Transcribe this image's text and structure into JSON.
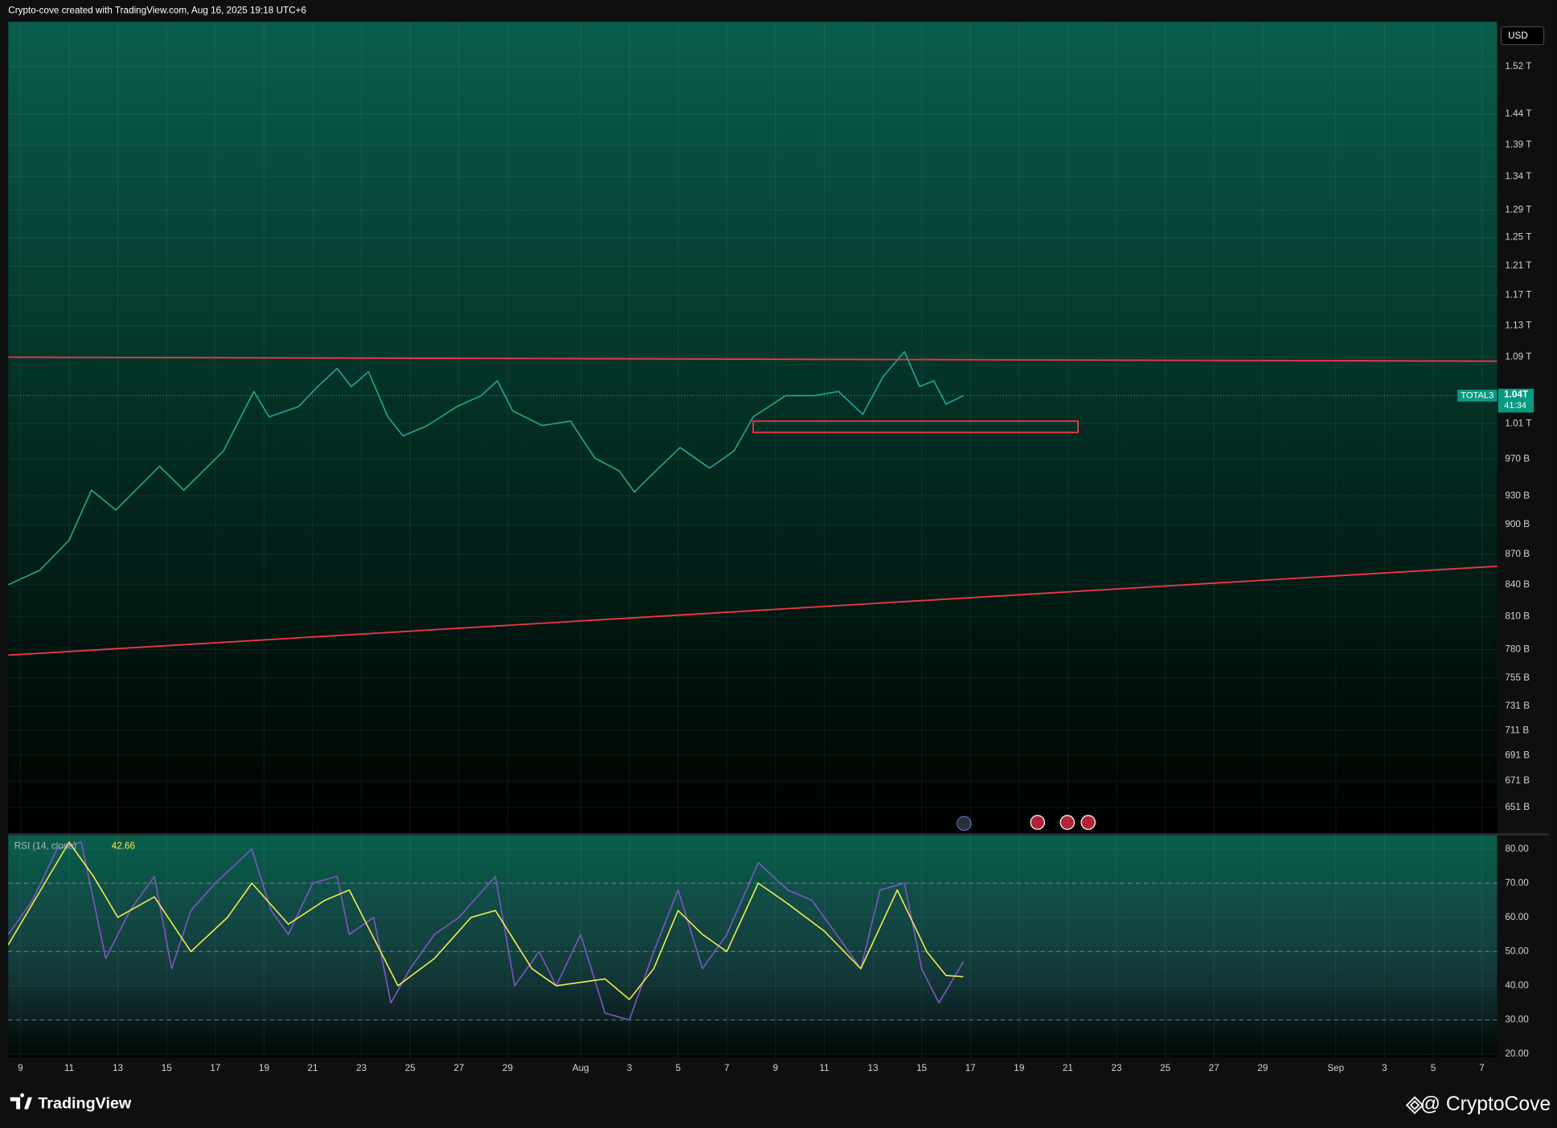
{
  "header": {
    "attribution": "Crypto-cove created with TradingView.com, Aug 16, 2025 19:18 UTC+6"
  },
  "footer": {
    "logo": "TradingView",
    "watermark": "@ CryptoCove"
  },
  "chart_data": [
    {
      "type": "line",
      "symbol": "TOTAL3",
      "currency": "USD",
      "countdown": "41:34",
      "log_scale": true,
      "grid": true,
      "xlim": [
        "2025-07-08T12:00:00Z",
        "2025-09-07T15:00:00Z"
      ],
      "ylim": [
        632,
        1600
      ],
      "yticks": [
        {
          "value": 1520,
          "label": "1.52 T"
        },
        {
          "value": 1440,
          "label": "1.44 T"
        },
        {
          "value": 1390,
          "label": "1.39 T"
        },
        {
          "value": 1340,
          "label": "1.34 T"
        },
        {
          "value": 1290,
          "label": "1.29 T"
        },
        {
          "value": 1250,
          "label": "1.25 T"
        },
        {
          "value": 1210,
          "label": "1.21 T"
        },
        {
          "value": 1170,
          "label": "1.17 T"
        },
        {
          "value": 1130,
          "label": "1.13 T"
        },
        {
          "value": 1090,
          "label": "1.09 T"
        },
        {
          "value": 1010,
          "label": "1.01 T"
        },
        {
          "value": 970,
          "label": "970 B"
        },
        {
          "value": 930,
          "label": "930 B"
        },
        {
          "value": 900,
          "label": "900 B"
        },
        {
          "value": 870,
          "label": "870 B"
        },
        {
          "value": 840,
          "label": "840 B"
        },
        {
          "value": 810,
          "label": "810 B"
        },
        {
          "value": 780,
          "label": "780 B"
        },
        {
          "value": 755,
          "label": "755 B"
        },
        {
          "value": 731,
          "label": "731 B"
        },
        {
          "value": 711,
          "label": "711 B"
        },
        {
          "value": 691,
          "label": "691 B"
        },
        {
          "value": 671,
          "label": "671 B"
        },
        {
          "value": 651,
          "label": "651 B"
        }
      ],
      "last_price": {
        "value": 1043,
        "label": "1.04T"
      },
      "series": [
        {
          "color": "#26a69a",
          "x": [
            "2025-07-08T12:00:00Z",
            "2025-07-09T19:00:00Z",
            "2025-07-11T00:00:00Z",
            "2025-07-11T22:00:00Z",
            "2025-07-12T22:00:00Z",
            "2025-07-14T17:00:00Z",
            "2025-07-15T17:00:00Z",
            "2025-07-17T08:00:00Z",
            "2025-07-18T14:00:00Z",
            "2025-07-19T05:00:00Z",
            "2025-07-20T10:00:00Z",
            "2025-07-21T05:00:00Z",
            "2025-07-22T00:00:00Z",
            "2025-07-22T14:00:00Z",
            "2025-07-23T07:00:00Z",
            "2025-07-24T02:00:00Z",
            "2025-07-24T17:00:00Z",
            "2025-07-25T17:00:00Z",
            "2025-07-26T22:00:00Z",
            "2025-07-27T22:00:00Z",
            "2025-07-28T14:00:00Z",
            "2025-07-29T05:00:00Z",
            "2025-07-30T10:00:00Z",
            "2025-07-31T14:00:00Z",
            "2025-08-01T14:00:00Z",
            "2025-08-02T14:00:00Z",
            "2025-08-03T05:00:00Z",
            "2025-08-04T02:00:00Z",
            "2025-08-05T02:00:00Z",
            "2025-08-06T07:00:00Z",
            "2025-08-07T07:00:00Z",
            "2025-08-08T02:00:00Z",
            "2025-08-09T10:00:00Z",
            "2025-08-10T14:00:00Z",
            "2025-08-11T14:00:00Z",
            "2025-08-12T14:00:00Z",
            "2025-08-13T10:00:00Z",
            "2025-08-14T07:00:00Z",
            "2025-08-14T22:00:00Z",
            "2025-08-15T12:00:00Z",
            "2025-08-16T00:00:00Z",
            "2025-08-16T17:00:00Z"
          ],
          "values": [
            840,
            854,
            884,
            936,
            915,
            962,
            936,
            979,
            1048,
            1018,
            1030,
            1054,
            1076,
            1054,
            1072,
            1018,
            996,
            1008,
            1030,
            1043,
            1061,
            1025,
            1008,
            1013,
            971,
            957,
            934,
            957,
            983,
            960,
            979,
            1018,
            1043,
            1043,
            1048,
            1021,
            1066,
            1097,
            1054,
            1061,
            1033,
            1043
          ]
        }
      ],
      "lines": [
        {
          "color": "#f23645",
          "start": [
            "2025-07-08T12:00:00Z",
            1090
          ],
          "end": [
            "2025-09-07T15:00:00Z",
            1085
          ]
        },
        {
          "color": "#f23645",
          "start": [
            "2025-07-08T12:00:00Z",
            775
          ],
          "end": [
            "2025-09-07T15:00:00Z",
            858
          ]
        }
      ],
      "zones": [
        {
          "color": "#f23645",
          "x": [
            "2025-08-08T02:00:00Z",
            "2025-08-21T10:00:00Z"
          ],
          "y": [
            1000,
            1013
          ]
        }
      ]
    },
    {
      "type": "line",
      "title": "RSI (14, close)",
      "grid": true,
      "xlim": [
        "2025-07-08T12:00:00Z",
        "2025-09-07T15:00:00Z"
      ],
      "ylim": [
        19,
        84
      ],
      "yticks": [
        {
          "value": 80,
          "label": "80.00"
        },
        {
          "value": 70,
          "label": "70.00"
        },
        {
          "value": 60,
          "label": "60.00"
        },
        {
          "value": 50,
          "label": "50.00"
        },
        {
          "value": 40,
          "label": "40.00"
        },
        {
          "value": 30,
          "label": "30.00"
        },
        {
          "value": 20,
          "label": "20.00"
        }
      ],
      "band_lines": [
        70,
        50,
        30
      ],
      "xticks": [
        {
          "value": "2025-07-09",
          "label": "9"
        },
        {
          "value": "2025-07-11",
          "label": "11"
        },
        {
          "value": "2025-07-13",
          "label": "13"
        },
        {
          "value": "2025-07-15",
          "label": "15"
        },
        {
          "value": "2025-07-17",
          "label": "17"
        },
        {
          "value": "2025-07-19",
          "label": "19"
        },
        {
          "value": "2025-07-21",
          "label": "21"
        },
        {
          "value": "2025-07-23",
          "label": "23"
        },
        {
          "value": "2025-07-25",
          "label": "25"
        },
        {
          "value": "2025-07-27",
          "label": "27"
        },
        {
          "value": "2025-07-29",
          "label": "29"
        },
        {
          "value": "2025-08-01",
          "label": "Aug"
        },
        {
          "value": "2025-08-03",
          "label": "3"
        },
        {
          "value": "2025-08-05",
          "label": "5"
        },
        {
          "value": "2025-08-07",
          "label": "7"
        },
        {
          "value": "2025-08-09",
          "label": "9"
        },
        {
          "value": "2025-08-11",
          "label": "11"
        },
        {
          "value": "2025-08-13",
          "label": "13"
        },
        {
          "value": "2025-08-15",
          "label": "15"
        },
        {
          "value": "2025-08-17",
          "label": "17"
        },
        {
          "value": "2025-08-19",
          "label": "19"
        },
        {
          "value": "2025-08-21",
          "label": "21"
        },
        {
          "value": "2025-08-23",
          "label": "23"
        },
        {
          "value": "2025-08-25",
          "label": "25"
        },
        {
          "value": "2025-08-27",
          "label": "27"
        },
        {
          "value": "2025-08-29",
          "label": "29"
        },
        {
          "value": "2025-09-01",
          "label": "Sep"
        },
        {
          "value": "2025-09-03",
          "label": "3"
        },
        {
          "value": "2025-09-05",
          "label": "5"
        },
        {
          "value": "2025-09-07",
          "label": "7"
        }
      ],
      "series": [
        {
          "color": "#7e57c2",
          "x": [
            "2025-07-08T12:00:00Z",
            "2025-07-09T12:00:00Z",
            "2025-07-10T12:00:00Z",
            "2025-07-11T12:00:00Z",
            "2025-07-12T00:00:00Z",
            "2025-07-12T12:00:00Z",
            "2025-07-13T12:00:00Z",
            "2025-07-14T12:00:00Z",
            "2025-07-15T05:00:00Z",
            "2025-07-16T00:00:00Z",
            "2025-07-17T00:00:00Z",
            "2025-07-18T12:00:00Z",
            "2025-07-19T07:00:00Z",
            "2025-07-20T00:00:00Z",
            "2025-07-21T00:00:00Z",
            "2025-07-22T00:00:00Z",
            "2025-07-22T12:00:00Z",
            "2025-07-23T12:00:00Z",
            "2025-07-24T05:00:00Z",
            "2025-07-25T00:00:00Z",
            "2025-07-26T00:00:00Z",
            "2025-07-27T00:00:00Z",
            "2025-07-28T12:00:00Z",
            "2025-07-29T07:00:00Z",
            "2025-07-30T07:00:00Z",
            "2025-07-31T00:00:00Z",
            "2025-08-01T00:00:00Z",
            "2025-08-02T00:00:00Z",
            "2025-08-03T00:00:00Z",
            "2025-08-04T00:00:00Z",
            "2025-08-05T00:00:00Z",
            "2025-08-06T00:00:00Z",
            "2025-08-07T00:00:00Z",
            "2025-08-08T07:00:00Z",
            "2025-08-09T12:00:00Z",
            "2025-08-10T12:00:00Z",
            "2025-08-11T12:00:00Z",
            "2025-08-12T12:00:00Z",
            "2025-08-13T07:00:00Z",
            "2025-08-14T07:00:00Z",
            "2025-08-15T00:00:00Z",
            "2025-08-15T17:00:00Z",
            "2025-08-16T17:00:00Z"
          ],
          "values": [
            55,
            65,
            80,
            82,
            65,
            48,
            62,
            72,
            45,
            62,
            70,
            80,
            62,
            55,
            70,
            72,
            55,
            60,
            35,
            45,
            55,
            60,
            72,
            40,
            50,
            40,
            55,
            32,
            30,
            50,
            68,
            45,
            55,
            76,
            68,
            65,
            55,
            45,
            68,
            70,
            45,
            35,
            47
          ]
        },
        {
          "color": "#f5e94a",
          "x": [
            "2025-07-08T12:00:00Z",
            "2025-07-10T00:00:00Z",
            "2025-07-11T00:00:00Z",
            "2025-07-12T00:00:00Z",
            "2025-07-13T00:00:00Z",
            "2025-07-14T12:00:00Z",
            "2025-07-16T00:00:00Z",
            "2025-07-17T12:00:00Z",
            "2025-07-18T12:00:00Z",
            "2025-07-20T00:00:00Z",
            "2025-07-21T12:00:00Z",
            "2025-07-22T12:00:00Z",
            "2025-07-24T12:00:00Z",
            "2025-07-26T00:00:00Z",
            "2025-07-27T12:00:00Z",
            "2025-07-28T12:00:00Z",
            "2025-07-30T00:00:00Z",
            "2025-07-31T00:00:00Z",
            "2025-08-02T00:00:00Z",
            "2025-08-03T00:00:00Z",
            "2025-08-04T00:00:00Z",
            "2025-08-05T00:00:00Z",
            "2025-08-06T00:00:00Z",
            "2025-08-07T00:00:00Z",
            "2025-08-08T07:00:00Z",
            "2025-08-09T12:00:00Z",
            "2025-08-11T00:00:00Z",
            "2025-08-12T12:00:00Z",
            "2025-08-14T00:00:00Z",
            "2025-08-15T05:00:00Z",
            "2025-08-16T00:00:00Z",
            "2025-08-16T17:00:00Z"
          ],
          "values": [
            52,
            70,
            82,
            72,
            60,
            66,
            50,
            60,
            70,
            58,
            65,
            68,
            40,
            48,
            60,
            62,
            45,
            40,
            42,
            36,
            45,
            62,
            55,
            50,
            70,
            64,
            56,
            45,
            68,
            50,
            43,
            42.66
          ]
        }
      ]
    }
  ]
}
